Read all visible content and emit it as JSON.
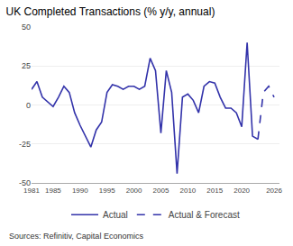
{
  "chart_data": {
    "type": "line",
    "title": "UK Completed Transactions (% y/y, annual)",
    "annotations": [
      "Sources: Refinitiv, Capital Economics"
    ],
    "x": [
      1981,
      1982,
      1983,
      1984,
      1985,
      1986,
      1987,
      1988,
      1989,
      1990,
      1991,
      1992,
      1993,
      1994,
      1995,
      1996,
      1997,
      1998,
      1999,
      2000,
      2001,
      2002,
      2003,
      2004,
      2005,
      2006,
      2007,
      2008,
      2009,
      2010,
      2011,
      2012,
      2013,
      2014,
      2015,
      2016,
      2017,
      2018,
      2019,
      2020,
      2021,
      2022,
      2023,
      2024,
      2025,
      2026
    ],
    "series": [
      {
        "name": "Actual",
        "color": "#3333AA",
        "line_style": "solid",
        "values": [
          10,
          15,
          5,
          2,
          -1,
          5,
          12,
          8,
          -5,
          -13,
          -20,
          -27,
          -16,
          -11,
          8,
          13,
          12,
          10,
          12,
          12,
          10,
          12,
          30,
          22,
          -18,
          22,
          8,
          -44,
          5,
          7,
          3,
          -5,
          12,
          15,
          14,
          5,
          -2,
          -2,
          -5,
          -14,
          40,
          -20,
          -22,
          null,
          null,
          null
        ]
      },
      {
        "name": "Actual & Forecast",
        "color": "#3333AA",
        "line_style": "dashed",
        "values": [
          null,
          null,
          null,
          null,
          null,
          null,
          null,
          null,
          null,
          null,
          null,
          null,
          null,
          null,
          null,
          null,
          null,
          null,
          null,
          null,
          null,
          null,
          null,
          null,
          null,
          null,
          null,
          null,
          null,
          null,
          null,
          null,
          null,
          null,
          null,
          null,
          null,
          null,
          null,
          null,
          null,
          null,
          -22,
          8,
          12,
          5
        ]
      }
    ],
    "xlim": [
      1981,
      2027
    ],
    "ylim": [
      -50,
      50
    ],
    "xticks": [
      1981,
      1985,
      1990,
      1995,
      2000,
      2005,
      2010,
      2015,
      2020,
      2026
    ],
    "yticks": [
      -50,
      -25,
      0,
      25,
      50
    ],
    "grid": true,
    "legend": "bottom"
  }
}
